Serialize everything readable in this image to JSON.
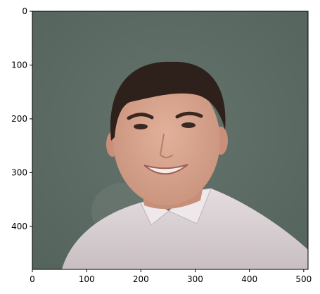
{
  "image": {
    "subject": "portrait-photo",
    "background_color": "#5a6962",
    "skin_color": "#d7a48c",
    "hair_color": "#2e201b",
    "shirt_color": "#d9d0d3"
  },
  "axes": {
    "x_range": [
      0,
      508
    ],
    "y_range": [
      0,
      480
    ],
    "y_inverted": true,
    "x_ticks": [
      0,
      100,
      200,
      300,
      400,
      500
    ],
    "y_ticks": [
      0,
      100,
      200,
      300,
      400
    ],
    "x_tick_labels": [
      "0",
      "100",
      "200",
      "300",
      "400",
      "500"
    ],
    "y_tick_labels": [
      "0",
      "100",
      "200",
      "300",
      "400"
    ],
    "frame_color": "#000000"
  }
}
